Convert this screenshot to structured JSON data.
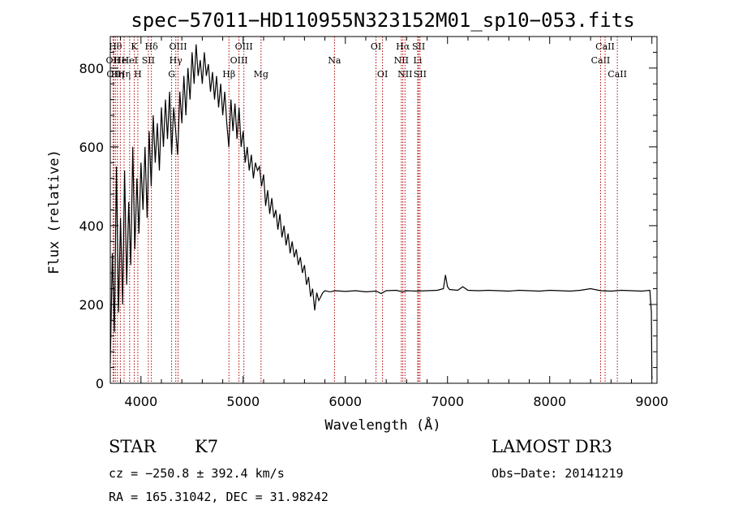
{
  "chart_data": {
    "type": "line",
    "title": "spec−57011−HD110955N323152M01_sp10−053.fits",
    "xlabel": "Wavelength (Å)",
    "ylabel": "Flux (relative)",
    "xlim": [
      3700,
      9050
    ],
    "ylim": [
      0,
      880
    ],
    "xticks": [
      4000,
      5000,
      6000,
      7000,
      8000,
      9000
    ],
    "yticks": [
      0,
      200,
      400,
      600,
      800
    ],
    "series": [
      {
        "name": "spectrum",
        "points": [
          [
            3700,
            50
          ],
          [
            3720,
            330
          ],
          [
            3740,
            130
          ],
          [
            3760,
            550
          ],
          [
            3780,
            180
          ],
          [
            3800,
            420
          ],
          [
            3820,
            200
          ],
          [
            3840,
            540
          ],
          [
            3860,
            250
          ],
          [
            3880,
            460
          ],
          [
            3900,
            300
          ],
          [
            3920,
            600
          ],
          [
            3940,
            340
          ],
          [
            3960,
            520
          ],
          [
            3980,
            380
          ],
          [
            4000,
            560
          ],
          [
            4020,
            440
          ],
          [
            4040,
            600
          ],
          [
            4060,
            420
          ],
          [
            4080,
            640
          ],
          [
            4100,
            500
          ],
          [
            4120,
            680
          ],
          [
            4140,
            560
          ],
          [
            4160,
            660
          ],
          [
            4180,
            540
          ],
          [
            4200,
            700
          ],
          [
            4220,
            600
          ],
          [
            4240,
            720
          ],
          [
            4260,
            620
          ],
          [
            4280,
            740
          ],
          [
            4300,
            580
          ],
          [
            4320,
            700
          ],
          [
            4340,
            640
          ],
          [
            4360,
            580
          ],
          [
            4380,
            740
          ],
          [
            4400,
            660
          ],
          [
            4420,
            780
          ],
          [
            4440,
            680
          ],
          [
            4460,
            800
          ],
          [
            4480,
            720
          ],
          [
            4500,
            840
          ],
          [
            4520,
            760
          ],
          [
            4540,
            860
          ],
          [
            4560,
            780
          ],
          [
            4580,
            820
          ],
          [
            4600,
            760
          ],
          [
            4620,
            840
          ],
          [
            4640,
            780
          ],
          [
            4660,
            810
          ],
          [
            4680,
            740
          ],
          [
            4700,
            790
          ],
          [
            4720,
            720
          ],
          [
            4740,
            780
          ],
          [
            4760,
            700
          ],
          [
            4780,
            760
          ],
          [
            4800,
            680
          ],
          [
            4820,
            740
          ],
          [
            4840,
            660
          ],
          [
            4860,
            600
          ],
          [
            4880,
            720
          ],
          [
            4900,
            640
          ],
          [
            4920,
            710
          ],
          [
            4940,
            620
          ],
          [
            4960,
            700
          ],
          [
            4980,
            600
          ],
          [
            5000,
            640
          ],
          [
            5020,
            560
          ],
          [
            5040,
            600
          ],
          [
            5060,
            540
          ],
          [
            5080,
            580
          ],
          [
            5100,
            520
          ],
          [
            5120,
            560
          ],
          [
            5140,
            540
          ],
          [
            5160,
            550
          ],
          [
            5180,
            500
          ],
          [
            5200,
            530
          ],
          [
            5220,
            450
          ],
          [
            5240,
            490
          ],
          [
            5260,
            430
          ],
          [
            5280,
            470
          ],
          [
            5300,
            420
          ],
          [
            5320,
            440
          ],
          [
            5340,
            390
          ],
          [
            5360,
            430
          ],
          [
            5380,
            370
          ],
          [
            5400,
            400
          ],
          [
            5420,
            350
          ],
          [
            5440,
            380
          ],
          [
            5460,
            330
          ],
          [
            5480,
            360
          ],
          [
            5500,
            320
          ],
          [
            5520,
            340
          ],
          [
            5540,
            300
          ],
          [
            5560,
            320
          ],
          [
            5580,
            280
          ],
          [
            5600,
            300
          ],
          [
            5620,
            250
          ],
          [
            5640,
            270
          ],
          [
            5660,
            220
          ],
          [
            5680,
            240
          ],
          [
            5700,
            185
          ],
          [
            5720,
            230
          ],
          [
            5740,
            210
          ],
          [
            5760,
            220
          ],
          [
            5780,
            230
          ],
          [
            5800,
            235
          ],
          [
            5850,
            232
          ],
          [
            5900,
            235
          ],
          [
            6000,
            233
          ],
          [
            6100,
            235
          ],
          [
            6200,
            232
          ],
          [
            6300,
            234
          ],
          [
            6350,
            228
          ],
          [
            6400,
            235
          ],
          [
            6500,
            236
          ],
          [
            6560,
            232
          ],
          [
            6600,
            235
          ],
          [
            6700,
            234
          ],
          [
            6800,
            235
          ],
          [
            6900,
            236
          ],
          [
            6960,
            240
          ],
          [
            6980,
            275
          ],
          [
            7000,
            245
          ],
          [
            7020,
            238
          ],
          [
            7100,
            236
          ],
          [
            7150,
            245
          ],
          [
            7200,
            236
          ],
          [
            7300,
            235
          ],
          [
            7400,
            236
          ],
          [
            7500,
            235
          ],
          [
            7600,
            234
          ],
          [
            7700,
            236
          ],
          [
            7800,
            235
          ],
          [
            7900,
            234
          ],
          [
            8000,
            236
          ],
          [
            8100,
            235
          ],
          [
            8200,
            234
          ],
          [
            8300,
            236
          ],
          [
            8400,
            240
          ],
          [
            8500,
            235
          ],
          [
            8600,
            234
          ],
          [
            8700,
            236
          ],
          [
            8800,
            235
          ],
          [
            8900,
            234
          ],
          [
            8980,
            236
          ],
          [
            8995,
            180
          ],
          [
            9000,
            10
          ]
        ]
      }
    ],
    "lines": [
      {
        "wl": 3727,
        "label": "OII",
        "row": 2
      },
      {
        "wl": 3734,
        "label": "OII",
        "row": 3
      },
      {
        "wl": 3750,
        "label": "Hθ",
        "row": 1
      },
      {
        "wl": 3770,
        "label": "Hη",
        "row": 3
      },
      {
        "wl": 3798,
        "label": "He",
        "row": 2
      },
      {
        "wl": 3835,
        "label": "Hη",
        "row": 3
      },
      {
        "wl": 3889,
        "label": "HeI",
        "row": 2
      },
      {
        "wl": 3934,
        "label": "K",
        "row": 1
      },
      {
        "wl": 3969,
        "label": "H",
        "row": 3
      },
      {
        "wl": 4072,
        "label": "SII",
        "row": 2
      },
      {
        "wl": 4102,
        "label": "Hδ",
        "row": 1
      },
      {
        "wl": 4300,
        "label": "G",
        "row": 3
      },
      {
        "wl": 4341,
        "label": "Hγ",
        "row": 2
      },
      {
        "wl": 4363,
        "label": "OIII",
        "row": 1
      },
      {
        "wl": 4861,
        "label": "Hβ",
        "row": 3
      },
      {
        "wl": 4959,
        "label": "OIII",
        "row": 2
      },
      {
        "wl": 5007,
        "label": "OIII",
        "row": 1
      },
      {
        "wl": 5175,
        "label": "Mg",
        "row": 3
      },
      {
        "wl": 5894,
        "label": "Na",
        "row": 2
      },
      {
        "wl": 6300,
        "label": "OI",
        "row": 1
      },
      {
        "wl": 6364,
        "label": "OI",
        "row": 3
      },
      {
        "wl": 6548,
        "label": "NII",
        "row": 2
      },
      {
        "wl": 6563,
        "label": "Hα",
        "row": 1
      },
      {
        "wl": 6584,
        "label": "NII",
        "row": 3
      },
      {
        "wl": 6708,
        "label": "Li",
        "row": 2
      },
      {
        "wl": 6717,
        "label": "SII",
        "row": 1
      },
      {
        "wl": 6731,
        "label": "SII",
        "row": 3
      },
      {
        "wl": 8498,
        "label": "CaII",
        "row": 2
      },
      {
        "wl": 8542,
        "label": "CaII",
        "row": 1
      },
      {
        "wl": 8662,
        "label": "CaII",
        "row": 3
      }
    ]
  },
  "info": {
    "class": "STAR",
    "subclass": "K7",
    "cz": "cz = −250.8 ± 392.4 km/s",
    "radec": "RA = 165.31042, DEC =  31.98242",
    "survey": "LAMOST DR3",
    "obsdate": "Obs−Date: 20141219"
  },
  "colors": {
    "line_marker": "#b00000",
    "spectrum": "#000000"
  }
}
